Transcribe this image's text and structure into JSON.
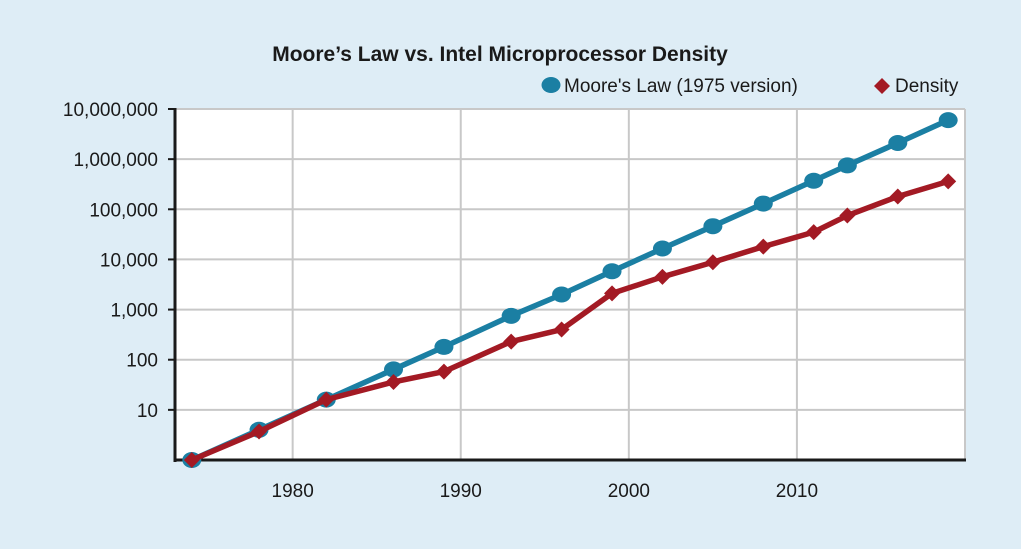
{
  "chart_data": {
    "type": "line",
    "title": "Moore’s Law vs. Intel Microprocessor Density",
    "xlabel": "",
    "ylabel": "",
    "y_scale": "log",
    "xlim": [
      1973,
      2020
    ],
    "ylim": [
      1,
      10000000
    ],
    "grid": true,
    "legend_position": "top-right",
    "x_ticks": [
      1980,
      1990,
      2000,
      2010
    ],
    "x_tick_labels": [
      "1980",
      "1990",
      "2000",
      "2010"
    ],
    "y_ticks": [
      10,
      100,
      1000,
      10000,
      100000,
      1000000,
      10000000
    ],
    "y_tick_labels": [
      "10",
      "100",
      "1,000",
      "10,000",
      "100,000",
      "1,000,000",
      "10,000,000"
    ],
    "series": [
      {
        "name": "Moore's Law (1975 version)",
        "color": "#1b7fa3",
        "marker": "circle",
        "x": [
          1974,
          1978,
          1982,
          1986,
          1989,
          1993,
          1996,
          1999,
          2002,
          2005,
          2008,
          2011,
          2013,
          2016,
          2019
        ],
        "y": [
          1,
          4,
          16,
          64,
          180,
          750,
          2000,
          5800,
          16500,
          46000,
          130000,
          370000,
          750000,
          2100000,
          6000000
        ]
      },
      {
        "name": "Density",
        "color": "#a31a24",
        "marker": "diamond",
        "x": [
          1974,
          1978,
          1982,
          1986,
          1989,
          1993,
          1996,
          1999,
          2002,
          2005,
          2008,
          2011,
          2013,
          2016,
          2019
        ],
        "y": [
          1,
          3.7,
          16,
          36,
          58,
          230,
          400,
          2100,
          4500,
          8800,
          18000,
          35000,
          75000,
          180000,
          360000
        ]
      }
    ]
  }
}
